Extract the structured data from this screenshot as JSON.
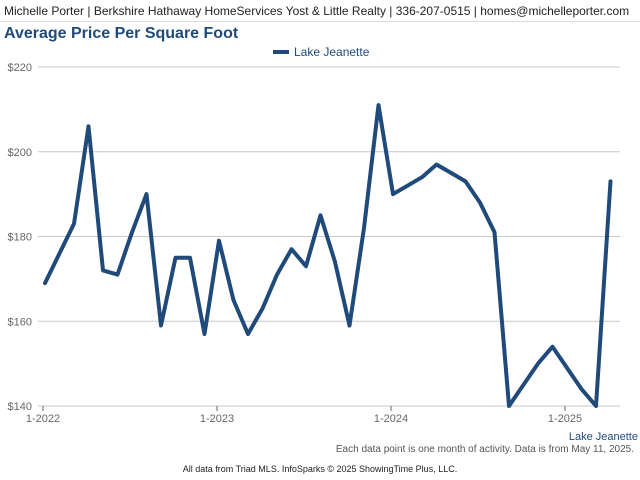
{
  "header": {
    "text": "Michelle Porter | Berkshire Hathaway HomeServices Yost & Little Realty | 336-207-0515 | homes@michelleporter.com"
  },
  "note": "Each data point is one month of activity. Data is from May 11, 2025.",
  "footer": "All data from Triad MLS. InfoSparks © 2025 ShowingTime Plus, LLC.",
  "colors": {
    "series": "#1f4a7a",
    "grid": "#c8c8c8",
    "axis_text": "#666666"
  },
  "chart_data": {
    "type": "line",
    "title": "Average Price Per Square Foot",
    "legend_position": "top-center",
    "xlabel": "",
    "ylabel": "",
    "ylim": [
      140,
      220
    ],
    "yticks": [
      140,
      160,
      180,
      200,
      220
    ],
    "ytick_labels": [
      "$140",
      "$160",
      "$180",
      "$200",
      "$220"
    ],
    "xticks": [
      {
        "label": "1-2022",
        "index": 0
      },
      {
        "label": "1-2023",
        "index": 12
      },
      {
        "label": "1-2024",
        "index": 24
      },
      {
        "label": "1-2025",
        "index": 36
      }
    ],
    "series_end_label": "Lake Jeanette",
    "series": [
      {
        "name": "Lake Jeanette",
        "x": [
          "2022-01",
          "2022-02",
          "2022-03",
          "2022-04",
          "2022-05",
          "2022-06",
          "2022-07",
          "2022-08",
          "2022-09",
          "2022-10",
          "2022-11",
          "2022-12",
          "2023-01",
          "2023-02",
          "2023-03",
          "2023-04",
          "2023-05",
          "2023-06",
          "2023-07",
          "2023-08",
          "2023-09",
          "2023-10",
          "2023-11",
          "2023-12",
          "2024-01",
          "2024-02",
          "2024-03",
          "2024-04",
          "2024-05",
          "2024-06",
          "2024-07",
          "2024-08",
          "2024-09",
          "2024-10",
          "2024-11",
          "2024-12",
          "2025-01",
          "2025-02",
          "2025-03",
          "2025-04"
        ],
        "values": [
          169,
          176,
          183,
          206,
          172,
          171,
          181,
          190,
          159,
          175,
          175,
          157,
          179,
          165,
          157,
          163,
          171,
          177,
          173,
          185,
          174,
          159,
          182,
          211,
          190,
          192,
          194,
          197,
          195,
          193,
          188,
          181,
          140,
          145,
          150,
          154,
          149,
          144,
          140,
          193
        ]
      }
    ]
  }
}
